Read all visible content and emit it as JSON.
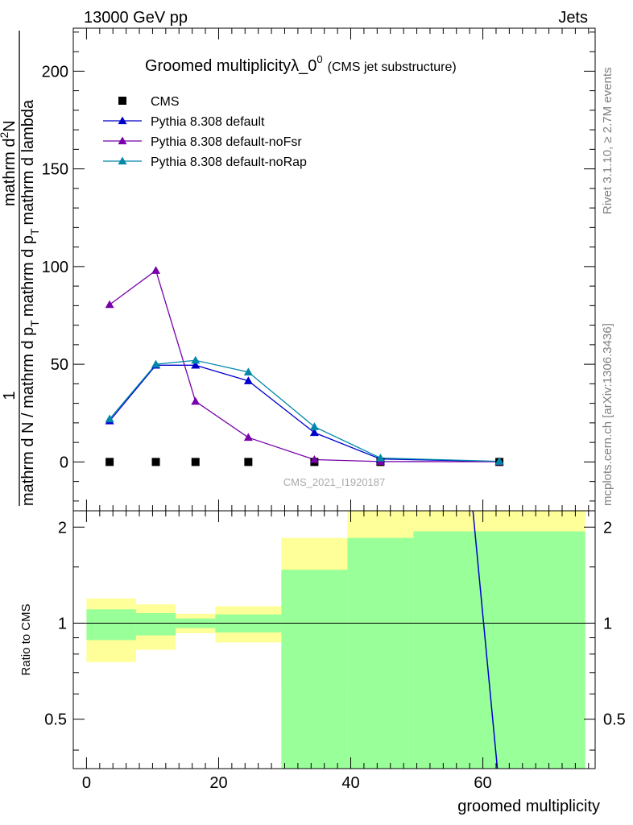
{
  "header": {
    "left": "13000 GeV pp",
    "right": "Jets"
  },
  "side_labels": {
    "rivet": "Rivet 3.1.10, ≥ 2.7M events",
    "mcplots": "mcplots.cern.ch [arXiv:1306.3436]"
  },
  "colors": {
    "cms": "#000000",
    "default": "#0000cc",
    "noFsr": "#7700aa",
    "noRap": "#0088aa",
    "band_inner": "#99ff99",
    "band_outer": "#ffff99"
  },
  "chart_data": [
    {
      "type": "line",
      "title_main": "Groomed multiplicityλ_0",
      "title_sup": "0",
      "title_sub": "(CMS jet substructure)",
      "ylabel": {
        "prefix_num": "1",
        "prefix_den": "mathrm d N / mathrm d p",
        "prefix_den_sub": "T",
        "num": "mathrm d",
        "num_sup": "2",
        "num_tail": "N",
        "den": "mathrm d p",
        "den_sub": "T",
        "den_tail": "mathrm d lambda"
      },
      "watermark": "CMS_2021_I1920187",
      "xlim": [
        -2,
        77
      ],
      "ylim": [
        -25,
        222
      ],
      "y_ticks": [
        0,
        50,
        100,
        150,
        200
      ],
      "grid": false,
      "legend_position": "top-left",
      "series": [
        {
          "name": "CMS",
          "marker": "square",
          "x": [
            3.5,
            10.5,
            16.5,
            24.5,
            34.5,
            44.5,
            62.5
          ],
          "y": [
            0,
            0,
            0,
            0,
            0,
            0,
            0
          ]
        },
        {
          "name": "Pythia 8.308 default",
          "marker": "triangle",
          "x": [
            3.5,
            10.5,
            16.5,
            24.5,
            34.5,
            44.5,
            62.5
          ],
          "y": [
            21,
            49.5,
            49.5,
            41.5,
            15,
            1.5,
            0.2
          ]
        },
        {
          "name": "Pythia 8.308 default-noFsr",
          "marker": "triangle",
          "x": [
            3.5,
            10.5,
            16.5,
            24.5,
            34.5,
            44.5,
            62.5
          ],
          "y": [
            80.5,
            98,
            31,
            12.5,
            1.2,
            0.2,
            0.1
          ]
        },
        {
          "name": "Pythia 8.308 default-noRap",
          "marker": "triangle",
          "x": [
            3.5,
            10.5,
            16.5,
            24.5,
            34.5,
            44.5,
            62.5
          ],
          "y": [
            22,
            50,
            52,
            46,
            18,
            2,
            0.3
          ]
        }
      ]
    },
    {
      "type": "area",
      "ylabel": "Ratio to CMS",
      "xlabel": "groomed multiplicity",
      "xlim": [
        -2,
        77
      ],
      "ylim": [
        0.35,
        2.25
      ],
      "x_ticks": [
        0,
        20,
        40,
        60
      ],
      "y_ticks": [
        0.5,
        1,
        2
      ],
      "y_tick_labels": [
        "0.5",
        "1",
        "2"
      ],
      "reference_line": 1,
      "bins": [
        {
          "x": [
            0,
            7.5
          ],
          "inner": [
            0.885,
            1.105
          ],
          "outer": [
            0.755,
            1.195
          ]
        },
        {
          "x": [
            7.5,
            13.5
          ],
          "inner": [
            0.915,
            1.075
          ],
          "outer": [
            0.825,
            1.145
          ]
        },
        {
          "x": [
            13.5,
            19.5
          ],
          "inner": [
            0.965,
            1.035
          ],
          "outer": [
            0.93,
            1.07
          ]
        },
        {
          "x": [
            19.5,
            29.5
          ],
          "inner": [
            0.935,
            1.065
          ],
          "outer": [
            0.87,
            1.13
          ]
        },
        {
          "x": [
            29.5,
            39.5
          ],
          "inner": [
            0.35,
            1.47
          ],
          "outer": [
            0.63,
            1.85
          ]
        },
        {
          "x": [
            39.5,
            49.5
          ],
          "inner": [
            0.35,
            1.85
          ],
          "outer": [
            0.35,
            2.25
          ]
        },
        {
          "x": [
            49.5,
            75.5
          ],
          "inner": [
            0.35,
            1.94
          ],
          "outer": [
            0.35,
            2.25
          ]
        }
      ],
      "ratio_line": {
        "series": "Pythia 8.308 default",
        "x": [
          58.5,
          62.2
        ],
        "y": [
          2.25,
          0.35
        ]
      }
    }
  ]
}
